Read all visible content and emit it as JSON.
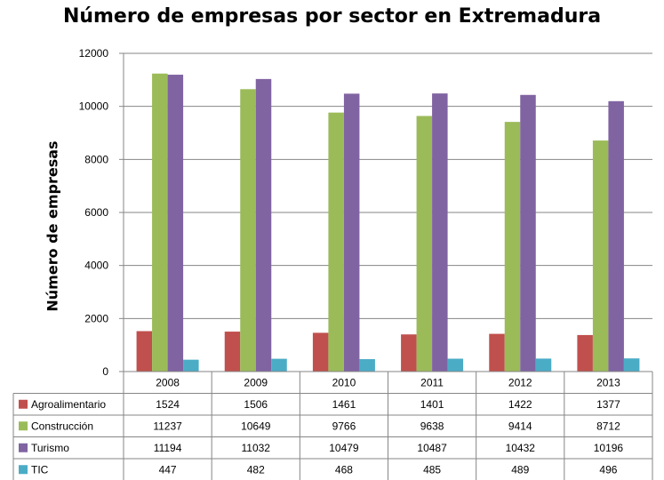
{
  "chart_data": {
    "type": "bar",
    "title": "Número de empresas por sector en Extremadura",
    "xlabel": "",
    "ylabel": "Número de empresas",
    "ylim": [
      0,
      12000
    ],
    "yticks": [
      0,
      2000,
      4000,
      6000,
      8000,
      10000,
      12000
    ],
    "grid": true,
    "legend": "data-table",
    "categories": [
      "2008",
      "2009",
      "2010",
      "2011",
      "2012",
      "2013"
    ],
    "series": [
      {
        "name": "Agroalimentario",
        "color": "#c0504d",
        "values": [
          1524,
          1506,
          1461,
          1401,
          1422,
          1377
        ]
      },
      {
        "name": "Construcción",
        "color": "#9bbb59",
        "values": [
          11237,
          10649,
          9766,
          9638,
          9414,
          8712
        ]
      },
      {
        "name": "Turismo",
        "color": "#8064a2",
        "values": [
          11194,
          11032,
          10479,
          10487,
          10432,
          10196
        ]
      },
      {
        "name": "TIC",
        "color": "#4bacc6",
        "values": [
          447,
          482,
          468,
          485,
          489,
          496
        ]
      }
    ]
  }
}
